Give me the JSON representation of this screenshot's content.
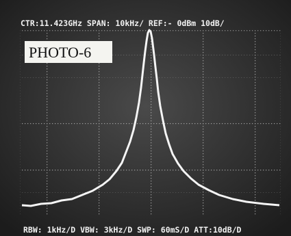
{
  "header": {
    "settings": "CTR:11.423GHz  SPAN: 10kHz/  REF:- 0dBm  10dB/"
  },
  "label": "PHOTO-6",
  "footer": {
    "settings": "RBW: 1kHz/D  VBW: 3kHz/D  SWP: 60mS/D  ATT:10dB/D"
  }
}
